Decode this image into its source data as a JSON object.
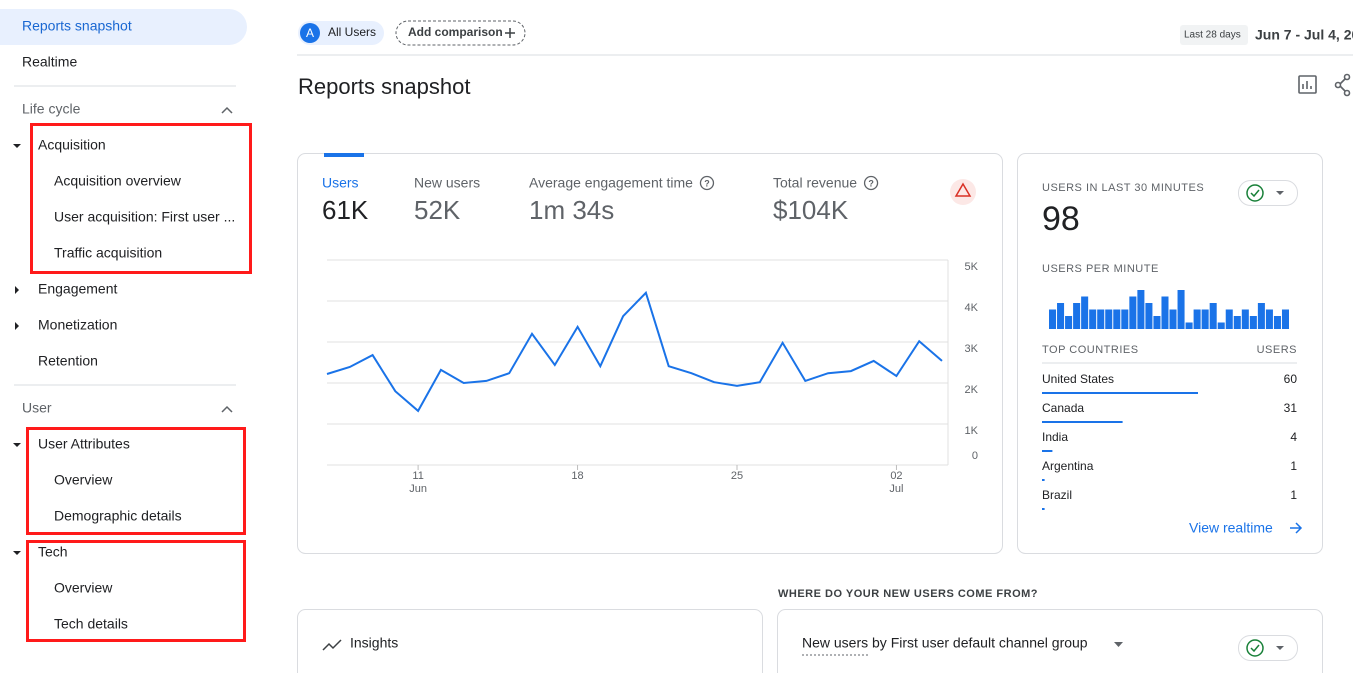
{
  "sidebar": {
    "top_items": [
      {
        "label": "Reports snapshot",
        "active": true
      },
      {
        "label": "Realtime"
      }
    ],
    "sections": [
      {
        "title": "Life cycle",
        "groups": [
          {
            "label": "Acquisition",
            "children": [
              "Acquisition overview",
              "User acquisition: First user ...",
              "Traffic acquisition"
            ]
          },
          {
            "label": "Engagement",
            "collapsed": true
          },
          {
            "label": "Monetization",
            "collapsed": true
          },
          {
            "label": "Retention"
          }
        ]
      },
      {
        "title": "User",
        "groups": [
          {
            "label": "User Attributes",
            "children": [
              "Overview",
              "Demographic details"
            ]
          },
          {
            "label": "Tech",
            "children": [
              "Overview",
              "Tech details"
            ]
          }
        ]
      }
    ]
  },
  "header": {
    "segment_badge": "A",
    "segment": "All Users",
    "add_comparison": "Add comparison",
    "date_label": "Last 28 days",
    "date_range": "Jun 7 - Jul 4, 20"
  },
  "page_title": "Reports snapshot",
  "metrics": [
    {
      "label": "Users",
      "value": "61K"
    },
    {
      "label": "New users",
      "value": "52K"
    },
    {
      "label": "Average engagement time",
      "value": "1m 34s",
      "help": true
    },
    {
      "label": "Total revenue",
      "value": "$104K",
      "help": true
    }
  ],
  "chart_data": {
    "type": "line",
    "color": "#1a73e8",
    "categories": [
      null,
      null,
      null,
      null,
      "11",
      null,
      null,
      null,
      null,
      null,
      null,
      "18",
      null,
      null,
      null,
      null,
      null,
      null,
      "25",
      null,
      null,
      null,
      null,
      null,
      null,
      "02",
      null,
      null
    ],
    "category_months": [
      null,
      null,
      null,
      null,
      "Jun",
      null,
      null,
      null,
      null,
      null,
      null,
      null,
      null,
      null,
      null,
      null,
      null,
      null,
      null,
      null,
      null,
      null,
      null,
      null,
      null,
      "Jul",
      null,
      null
    ],
    "values": [
      2220,
      2390,
      2680,
      1800,
      1320,
      2320,
      2000,
      2050,
      2240,
      3200,
      2440,
      3370,
      2410,
      3630,
      4200,
      2410,
      2240,
      2020,
      1930,
      2020,
      2980,
      2050,
      2240,
      2290,
      2540,
      2170,
      3020,
      2540
    ],
    "ylim": [
      0,
      5000
    ],
    "yticks": [
      0,
      {
        "value": 1000,
        "label": "1K"
      },
      {
        "value": 2000,
        "label": "2K"
      },
      {
        "value": 3000,
        "label": "3K"
      },
      {
        "value": 4000,
        "label": "4K"
      },
      {
        "value": 5000,
        "label": "5K"
      }
    ],
    "grid": true
  },
  "realtime": {
    "title": "USERS IN LAST 30 MINUTES",
    "count": 98,
    "per_minute_label": "USERS PER MINUTE",
    "per_minute": {
      "type": "bar",
      "color": "#1a73e8",
      "values": [
        3,
        4,
        2,
        4,
        5,
        3,
        3,
        3,
        3,
        3,
        5,
        6,
        4,
        2,
        5,
        3,
        6,
        1,
        3,
        3,
        4,
        1,
        3,
        2,
        3,
        2,
        4,
        3,
        2,
        3
      ]
    },
    "countries_header": "TOP COUNTRIES",
    "users_header": "USERS",
    "countries": [
      {
        "name": "United States",
        "users": 60
      },
      {
        "name": "Canada",
        "users": 31
      },
      {
        "name": "India",
        "users": 4
      },
      {
        "name": "Argentina",
        "users": 1
      },
      {
        "name": "Brazil",
        "users": 1
      }
    ],
    "link": "View realtime"
  },
  "sources_heading": "WHERE DO YOUR NEW USERS COME FROM?",
  "insights": "Insights",
  "channel_card_title": "New users by First user default channel group"
}
